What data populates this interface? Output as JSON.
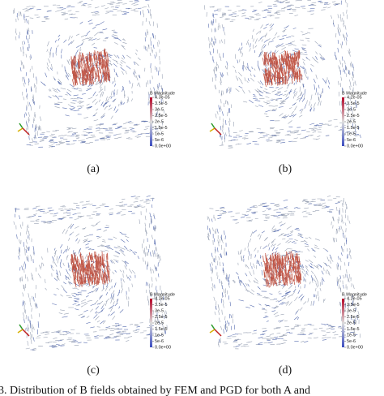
{
  "panels": [
    {
      "label": "(a)",
      "colorbar_title": "B Magnitude",
      "colorbar_ticks": [
        "4.3e-05",
        "3.5e-5",
        "3e-5",
        "2.5e-5",
        "2e-5",
        "1.5e-5",
        "1e-5",
        "5e-6",
        "0.0e+00"
      ]
    },
    {
      "label": "(b)",
      "colorbar_title": "B Magnitude",
      "colorbar_ticks": [
        "4.2e-05",
        "3.5e-5",
        "3e-5",
        "2.5e-5",
        "2e-5",
        "1.5e-5",
        "1e-5",
        "5e-6",
        "0.0e+00"
      ]
    },
    {
      "label": "(c)",
      "colorbar_title": "B Magnitude",
      "colorbar_ticks": [
        "4.2e-05",
        "3.5e-5",
        "3e-5",
        "2.5e-5",
        "2e-5",
        "1.5e-5",
        "1e-5",
        "5e-6",
        "0.0e+00"
      ]
    },
    {
      "label": "(d)",
      "colorbar_title": "B Magnitude",
      "colorbar_ticks": [
        "4.2e-05",
        "3.5e-5",
        "3e-5",
        "2.5e-5",
        "2e-5",
        "1.5e-5",
        "1e-5",
        "5e-6",
        "0.0e+00"
      ]
    }
  ],
  "caption": "3.   Distribution of B fields obtained by FEM and PGD for both A and"
}
